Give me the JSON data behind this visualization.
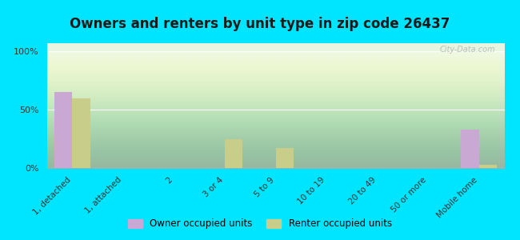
{
  "title": "Owners and renters by unit type in zip code 26437",
  "categories": [
    "1, detached",
    "1, attached",
    "2",
    "3 or 4",
    "5 to 9",
    "10 to 19",
    "20 to 49",
    "50 or more",
    "Mobile home"
  ],
  "owner_values": [
    65,
    0,
    0,
    0,
    0,
    0,
    0,
    0,
    33
  ],
  "renter_values": [
    60,
    0,
    0,
    25,
    17,
    0,
    0,
    0,
    3
  ],
  "owner_color": "#c9a8d4",
  "renter_color": "#c8cd8a",
  "background_outer": "#00e5ff",
  "yticks": [
    0,
    50,
    100
  ],
  "ylim": [
    0,
    100
  ],
  "ylabel_labels": [
    "0%",
    "50%",
    "100%"
  ],
  "bar_width": 0.35,
  "legend_owner": "Owner occupied units",
  "legend_renter": "Renter occupied units",
  "title_fontsize": 12,
  "watermark": "City-Data.com"
}
